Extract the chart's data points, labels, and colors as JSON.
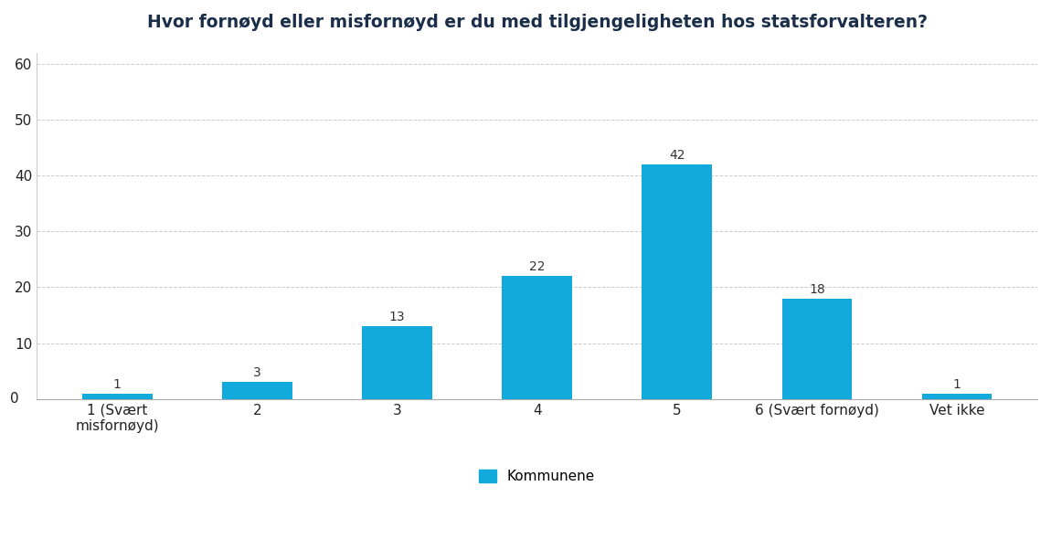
{
  "title": "Hvor fornøyd eller misfornøyd er du med tilgjengeligheten hos statsforvalteren?",
  "categories": [
    "1 (Svært\nmisfornøyd)",
    "2",
    "3",
    "4",
    "5",
    "6 (Svært fornøyd)",
    "Vet ikke"
  ],
  "values": [
    1,
    3,
    13,
    22,
    42,
    18,
    1
  ],
  "bar_color": "#12AADC",
  "title_color": "#1a2e4a",
  "title_fontsize": 13.5,
  "label_fontsize": 11,
  "tick_fontsize": 11,
  "value_fontsize": 10,
  "ylim": [
    0,
    62
  ],
  "yticks": [
    10,
    20,
    30,
    40,
    50,
    60
  ],
  "ytick_labels": [
    "10",
    "20",
    "30",
    "40",
    "50",
    "60"
  ],
  "legend_label": "Kommunene",
  "background_color": "#ffffff",
  "grid_color": "#cccccc"
}
